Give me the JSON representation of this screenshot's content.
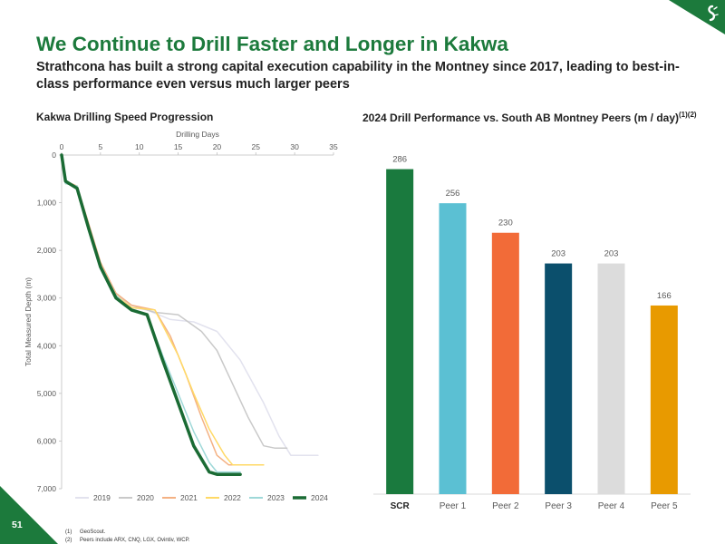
{
  "slide": {
    "title": "We Continue to Drill Faster and Longer in Kakwa",
    "subtitle": "Strathcona has built a strong capital execution capability in the Montney since 2017, leading to best-in-class performance even versus much larger peers",
    "page_number": "51",
    "footnotes": [
      {
        "num": "(1)",
        "text": "GeoScout."
      },
      {
        "num": "(2)",
        "text": "Peers include ARX, CNQ, LGX, Ovintiv, WCP."
      }
    ]
  },
  "colors": {
    "brand_green": "#1c7a3c",
    "axis": "#bfbfbf",
    "label": "#595959"
  },
  "chart_data": [
    {
      "type": "line",
      "title": "Kakwa Drilling Speed Progression",
      "xlabel": "Drilling Days",
      "ylabel": "Total Measured Depth (m)",
      "x_axis_position": "top",
      "y_inverted": true,
      "xlim": [
        0,
        35
      ],
      "ylim": [
        0,
        7000
      ],
      "x_ticks": [
        "0",
        "5",
        "10",
        "15",
        "20",
        "25",
        "30",
        "35"
      ],
      "y_ticks": [
        "0",
        "1,000",
        "2,000",
        "3,000",
        "4,000",
        "5,000",
        "6,000",
        "7,000"
      ],
      "grid": false,
      "legend_position": "bottom",
      "series": [
        {
          "name": "2019",
          "color": "#e2e2ee",
          "width": 1.5,
          "points": [
            [
              0,
              0
            ],
            [
              0.5,
              600
            ],
            [
              2,
              650
            ],
            [
              3.5,
              1500
            ],
            [
              5,
              2300
            ],
            [
              7,
              2900
            ],
            [
              9,
              3200
            ],
            [
              11,
              3250
            ],
            [
              14,
              3450
            ],
            [
              17,
              3500
            ],
            [
              20,
              3700
            ],
            [
              23,
              4300
            ],
            [
              26,
              5200
            ],
            [
              28,
              5900
            ],
            [
              29.5,
              6300
            ],
            [
              33,
              6300
            ]
          ]
        },
        {
          "name": "2020",
          "color": "#c9c9c9",
          "width": 1.5,
          "points": [
            [
              0,
              0
            ],
            [
              0.5,
              600
            ],
            [
              2,
              650
            ],
            [
              3.5,
              1500
            ],
            [
              5,
              2300
            ],
            [
              7,
              2900
            ],
            [
              9,
              3150
            ],
            [
              12,
              3300
            ],
            [
              15,
              3350
            ],
            [
              18,
              3700
            ],
            [
              20,
              4100
            ],
            [
              22,
              4800
            ],
            [
              24,
              5500
            ],
            [
              26,
              6100
            ],
            [
              27.5,
              6150
            ],
            [
              29,
              6150
            ]
          ]
        },
        {
          "name": "2021",
          "color": "#f4b183",
          "width": 1.5,
          "points": [
            [
              0,
              0
            ],
            [
              0.5,
              550
            ],
            [
              2,
              650
            ],
            [
              3.5,
              1450
            ],
            [
              5,
              2250
            ],
            [
              7,
              2900
            ],
            [
              9,
              3150
            ],
            [
              12,
              3250
            ],
            [
              14,
              3800
            ],
            [
              16,
              4600
            ],
            [
              18,
              5500
            ],
            [
              20,
              6300
            ],
            [
              21.5,
              6500
            ],
            [
              24,
              6500
            ]
          ]
        },
        {
          "name": "2022",
          "color": "#ffd966",
          "width": 1.5,
          "points": [
            [
              0,
              0
            ],
            [
              0.5,
              600
            ],
            [
              2,
              650
            ],
            [
              3.5,
              1500
            ],
            [
              5,
              2300
            ],
            [
              7,
              2950
            ],
            [
              9,
              3200
            ],
            [
              12,
              3250
            ],
            [
              15,
              4200
            ],
            [
              17,
              5000
            ],
            [
              19,
              5750
            ],
            [
              21,
              6300
            ],
            [
              22,
              6500
            ],
            [
              26,
              6500
            ]
          ]
        },
        {
          "name": "2023",
          "color": "#9ed8d8",
          "width": 1.5,
          "points": [
            [
              0,
              0
            ],
            [
              0.5,
              600
            ],
            [
              2,
              650
            ],
            [
              3.5,
              1500
            ],
            [
              5,
              2300
            ],
            [
              7,
              2950
            ],
            [
              9,
              3250
            ],
            [
              11,
              3350
            ],
            [
              13,
              4200
            ],
            [
              15,
              5000
            ],
            [
              17,
              5800
            ],
            [
              19,
              6450
            ],
            [
              20,
              6650
            ],
            [
              23,
              6650
            ]
          ]
        },
        {
          "name": "2024",
          "color": "#1a6b34",
          "width": 3.5,
          "points": [
            [
              0,
              0
            ],
            [
              0.5,
              550
            ],
            [
              2,
              700
            ],
            [
              3.5,
              1550
            ],
            [
              5,
              2350
            ],
            [
              7,
              3000
            ],
            [
              9,
              3250
            ],
            [
              11,
              3350
            ],
            [
              13,
              4300
            ],
            [
              15,
              5200
            ],
            [
              17,
              6100
            ],
            [
              19,
              6650
            ],
            [
              20,
              6700
            ],
            [
              23,
              6700
            ]
          ]
        }
      ]
    },
    {
      "type": "bar",
      "title": "2024 Drill Performance vs. South AB Montney Peers (m / day)",
      "title_sup": "(1)(2)",
      "categories": [
        "SCR",
        "Peer 1",
        "Peer 2",
        "Peer 3",
        "Peer 4",
        "Peer 5"
      ],
      "values": [
        286,
        256,
        230,
        203,
        203,
        166
      ],
      "colors": [
        "#1a7a3e",
        "#5bc0d3",
        "#f26b38",
        "#0b4f6c",
        "#dcdcdc",
        "#e89a00"
      ],
      "highlight_category": "SCR",
      "ylim": [
        0,
        300
      ],
      "grid": false
    }
  ]
}
